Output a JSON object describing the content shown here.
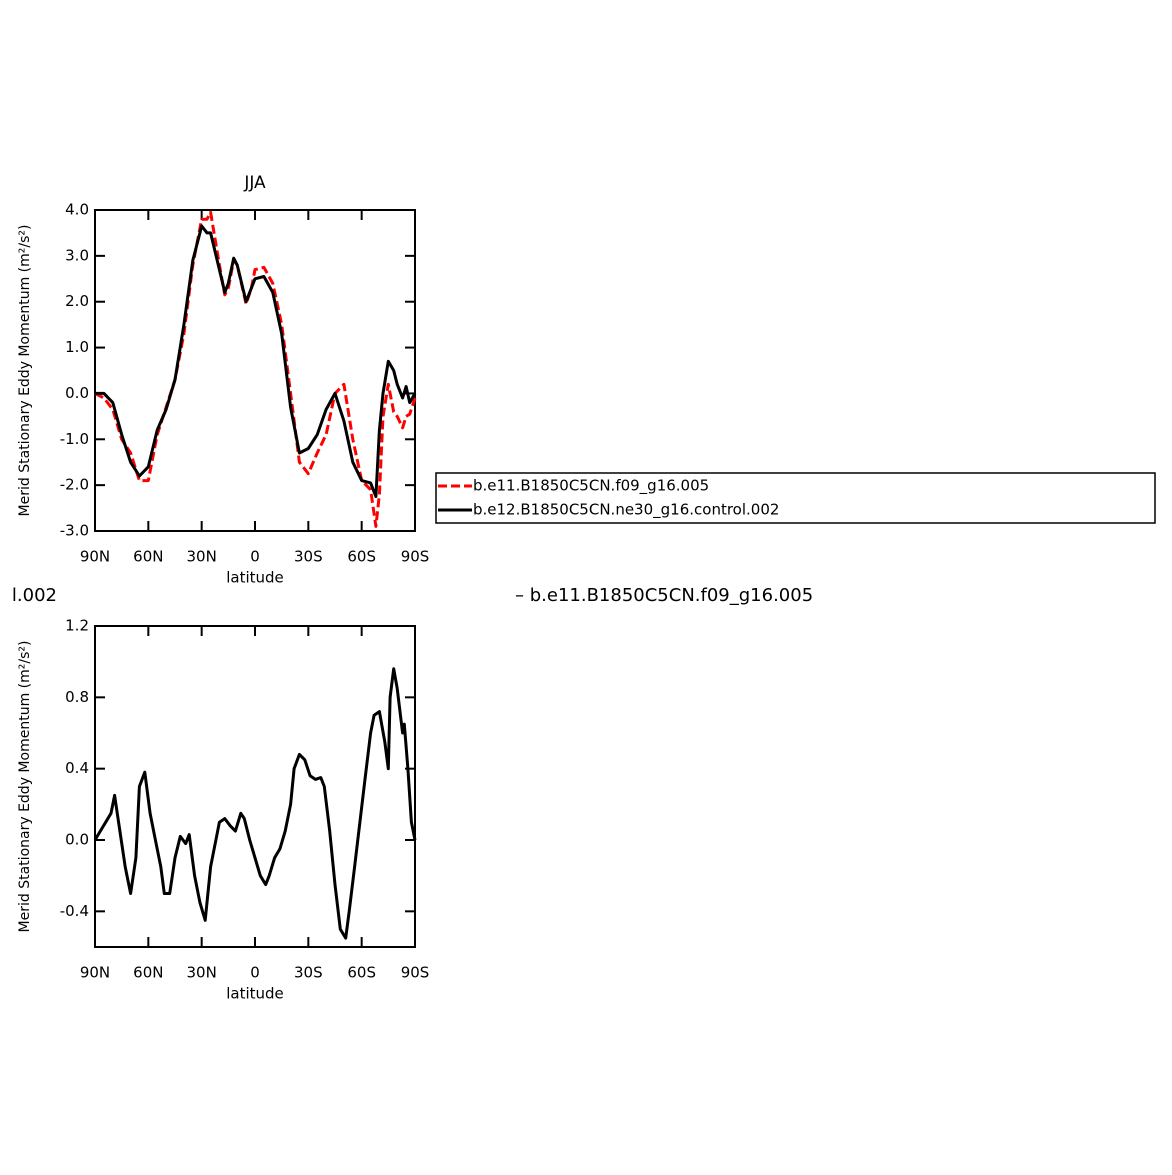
{
  "chart_data": [
    {
      "type": "line",
      "title": "JJA",
      "x_label": "latitude",
      "y_label": "Merid Stationary Eddy Momentum (m²/s²)",
      "x": [
        90,
        85,
        80,
        75,
        70,
        65,
        60,
        55,
        50,
        45,
        40,
        35,
        30,
        27,
        25,
        20,
        17,
        15,
        12,
        10,
        5,
        2,
        0,
        -5,
        -10,
        -15,
        -20,
        -25,
        -30,
        -35,
        -40,
        -45,
        -50,
        -55,
        -60,
        -65,
        -68,
        -70,
        -72,
        -75,
        -78,
        -80,
        -83,
        -85,
        -87,
        -90
      ],
      "series": [
        {
          "name": "b.e11.B1850C5CN.f09_g16.005",
          "color": "#ff0000",
          "line_style": "dashed",
          "values": [
            0,
            -0.1,
            -0.35,
            -1.0,
            -1.3,
            -1.9,
            -1.9,
            -0.9,
            -0.3,
            0.3,
            1.3,
            2.8,
            3.8,
            3.8,
            3.95,
            2.8,
            2.15,
            2.3,
            2.9,
            2.8,
            1.95,
            2.3,
            2.7,
            2.75,
            2.4,
            1.5,
            0,
            -1.5,
            -1.75,
            -1.3,
            -0.9,
            0,
            0.2,
            -1.0,
            -1.9,
            -2.1,
            -2.9,
            -2.2,
            -0.5,
            0.2,
            -0.4,
            -0.5,
            -0.75,
            -0.5,
            -0.45,
            -0.1
          ]
        },
        {
          "name": "b.e12.B1850C5CN.ne30_g16.control.002",
          "color": "#000000",
          "line_style": "solid",
          "values": [
            0,
            0,
            -0.2,
            -0.9,
            -1.5,
            -1.8,
            -1.6,
            -0.8,
            -0.35,
            0.3,
            1.5,
            2.9,
            3.65,
            3.5,
            3.5,
            2.7,
            2.2,
            2.4,
            2.95,
            2.8,
            2.0,
            2.3,
            2.5,
            2.55,
            2.2,
            1.3,
            -0.3,
            -1.3,
            -1.2,
            -0.9,
            -0.35,
            0,
            -0.6,
            -1.5,
            -1.9,
            -1.95,
            -2.25,
            -0.8,
            0,
            0.7,
            0.5,
            0.2,
            -0.1,
            0.15,
            -0.2,
            0
          ]
        }
      ],
      "xlim": [
        90,
        -90
      ],
      "xticks": [
        {
          "value": 90,
          "label": "90N"
        },
        {
          "value": 60,
          "label": "60N"
        },
        {
          "value": 30,
          "label": "30N"
        },
        0,
        {
          "value": -30,
          "label": "30S"
        },
        {
          "value": -60,
          "label": "60S"
        },
        {
          "value": -90,
          "label": "90S"
        }
      ],
      "ylim": [
        -3,
        4
      ],
      "yticks": [
        {
          "value": -3,
          "label": "-3.0"
        },
        {
          "value": -2,
          "label": "-2.0"
        },
        {
          "value": -1,
          "label": "-1.0"
        },
        {
          "value": 0,
          "label": "0.0"
        },
        {
          "value": 1,
          "label": "1.0"
        },
        {
          "value": 2,
          "label": "2.0"
        },
        {
          "value": 3,
          "label": "3.0"
        },
        {
          "value": 4,
          "label": "4.0"
        }
      ],
      "legend": "right"
    },
    {
      "type": "line",
      "left_string": "l.002",
      "right_string": "– b.e11.B1850C5CN.f09_g16.005",
      "x_label": "latitude",
      "y_label": "Merid Stationary Eddy Momentum (m²/s²)",
      "x": [
        90,
        87,
        84,
        81,
        79,
        76,
        73,
        70,
        67,
        65,
        62,
        59,
        56,
        53,
        51,
        48,
        45,
        42,
        39,
        37,
        34,
        31,
        28,
        25,
        22,
        20,
        17,
        14,
        11,
        8,
        6,
        3,
        0,
        -3,
        -6,
        -8,
        -11,
        -14,
        -17,
        -20,
        -22,
        -25,
        -28,
        -31,
        -34,
        -37,
        -39,
        -42,
        -45,
        -48,
        -51,
        -53,
        -56,
        -59,
        -62,
        -65,
        -67,
        -70,
        -73,
        -75,
        -76,
        -78,
        -80,
        -83,
        -84,
        -86,
        -88,
        -90
      ],
      "series": [
        {
          "color": "#000000",
          "line_style": "solid",
          "values": [
            0,
            0.05,
            0.1,
            0.15,
            0.25,
            0.05,
            -0.15,
            -0.3,
            -0.1,
            0.3,
            0.38,
            0.15,
            0,
            -0.15,
            -0.3,
            -0.3,
            -0.1,
            0.02,
            -0.02,
            0.03,
            -0.2,
            -0.35,
            -0.45,
            -0.15,
            0,
            0.1,
            0.12,
            0.08,
            0.05,
            0.15,
            0.12,
            0,
            -0.1,
            -0.2,
            -0.25,
            -0.2,
            -0.1,
            -0.05,
            0.05,
            0.2,
            0.4,
            0.48,
            0.45,
            0.36,
            0.34,
            0.35,
            0.3,
            0.05,
            -0.25,
            -0.5,
            -0.55,
            -0.4,
            -0.15,
            0.1,
            0.35,
            0.6,
            0.7,
            0.72,
            0.55,
            0.4,
            0.8,
            0.96,
            0.85,
            0.6,
            0.65,
            0.4,
            0.1,
            0
          ]
        }
      ],
      "xlim": [
        90,
        -90
      ],
      "xticks": [
        {
          "value": 90,
          "label": "90N"
        },
        {
          "value": 60,
          "label": "60N"
        },
        {
          "value": 30,
          "label": "30N"
        },
        0,
        {
          "value": -30,
          "label": "30S"
        },
        {
          "value": -60,
          "label": "60S"
        },
        {
          "value": -90,
          "label": "90S"
        }
      ],
      "ylim": [
        -0.6,
        1.2
      ],
      "yticks": [
        {
          "value": -0.4,
          "label": "-0.4"
        },
        {
          "value": 0,
          "label": "0.0"
        },
        {
          "value": 0.4,
          "label": "0.4"
        },
        {
          "value": 0.8,
          "label": "0.8"
        },
        {
          "value": 1.2,
          "label": "1.2"
        }
      ]
    }
  ]
}
